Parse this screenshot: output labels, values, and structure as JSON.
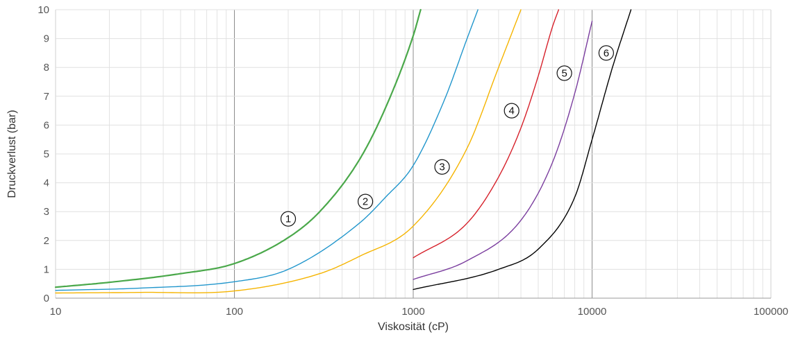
{
  "chart_data": {
    "type": "line",
    "title": "",
    "xlabel": "Viskosität (cP)",
    "ylabel": "Druckverlust (bar)",
    "x_scale": "log",
    "xlim": [
      10,
      100000
    ],
    "ylim": [
      0,
      10
    ],
    "grid": true,
    "x_ticks": [
      "10",
      "100",
      "1000",
      "10000",
      "100000"
    ],
    "y_ticks": [
      "0",
      "1",
      "2",
      "3",
      "4",
      "5",
      "6",
      "7",
      "8",
      "9",
      "10"
    ],
    "series": [
      {
        "name": "1",
        "color": "#4aa84a",
        "width": 2.2,
        "x": [
          10,
          20,
          50,
          100,
          200,
          300,
          500,
          700,
          1000,
          1100
        ],
        "y": [
          0.38,
          0.55,
          0.85,
          1.2,
          2.1,
          3.0,
          4.8,
          6.6,
          9.1,
          10.0
        ],
        "label_pos": [
          200,
          2.75
        ]
      },
      {
        "name": "2",
        "color": "#2196cc",
        "width": 1.4,
        "x": [
          10,
          30,
          100,
          200,
          500,
          700,
          1000,
          1500,
          2000,
          2300
        ],
        "y": [
          0.27,
          0.35,
          0.57,
          1.0,
          2.6,
          3.5,
          4.6,
          6.9,
          9.0,
          10.0
        ],
        "label_pos": [
          540,
          3.35
        ]
      },
      {
        "name": "3",
        "color": "#f5b400",
        "width": 1.4,
        "x": [
          10,
          30,
          100,
          300,
          500,
          1000,
          2000,
          3000,
          4000
        ],
        "y": [
          0.18,
          0.2,
          0.25,
          0.85,
          1.45,
          2.5,
          5.2,
          8.0,
          10.0
        ],
        "label_pos": [
          1450,
          4.55
        ]
      },
      {
        "name": "4",
        "color": "#d6202a",
        "width": 1.4,
        "x": [
          1000,
          2000,
          3000,
          4000,
          5000,
          6000,
          6500
        ],
        "y": [
          1.4,
          2.6,
          4.2,
          5.9,
          7.7,
          9.4,
          10.0
        ],
        "label_pos": [
          3550,
          6.5
        ]
      },
      {
        "name": "5",
        "color": "#7a3d9e",
        "width": 1.4,
        "x": [
          1000,
          2000,
          4000,
          6000,
          8000,
          10000
        ],
        "y": [
          0.65,
          1.3,
          2.7,
          4.7,
          7.1,
          9.6
        ],
        "label_pos": [
          7000,
          7.8
        ]
      },
      {
        "name": "6",
        "color": "#000000",
        "width": 1.4,
        "x": [
          1000,
          3000,
          5000,
          8000,
          10000,
          13000,
          16500
        ],
        "y": [
          0.3,
          1.0,
          1.7,
          3.5,
          5.5,
          8.0,
          10.0
        ],
        "label_pos": [
          12000,
          8.5
        ]
      }
    ]
  }
}
